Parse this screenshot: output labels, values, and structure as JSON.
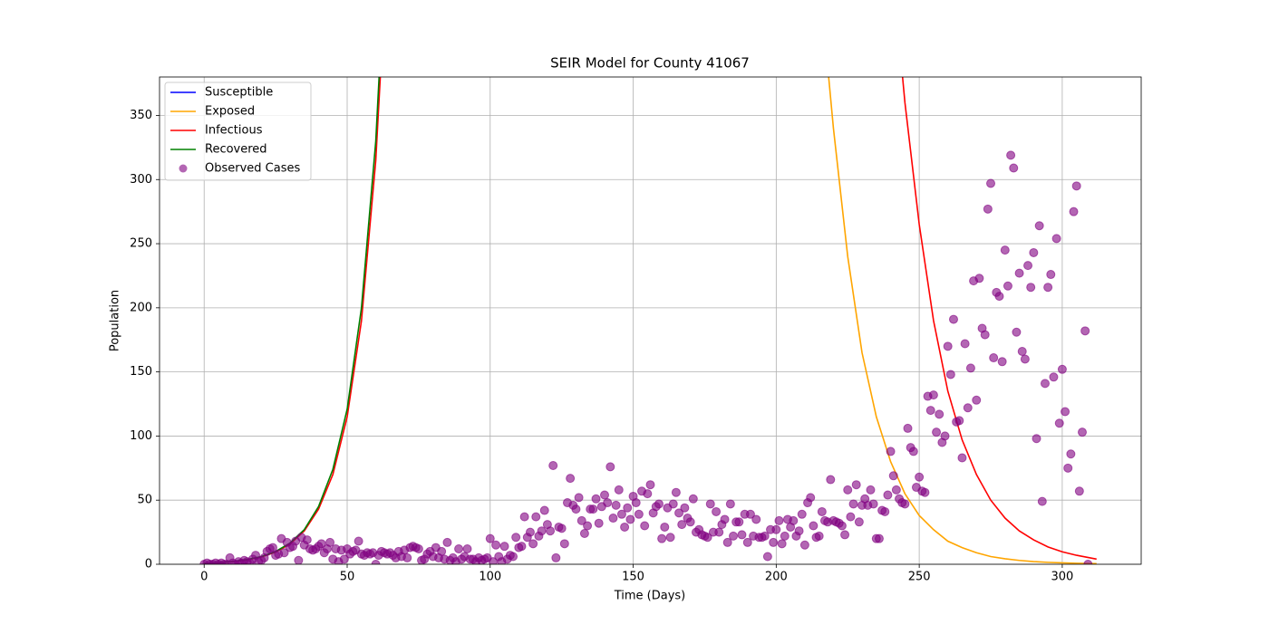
{
  "chart_data": {
    "type": "line",
    "title": "SEIR Model for County 41067",
    "x_label": "Time (Days)",
    "y_label": "Population",
    "xlim": [
      -15.6,
      327.6
    ],
    "ylim": [
      0,
      380
    ],
    "xticks": [
      0,
      50,
      100,
      150,
      200,
      250,
      300
    ],
    "yticks": [
      0,
      50,
      100,
      150,
      200,
      250,
      300,
      350
    ],
    "grid": true,
    "legend": "upper left",
    "x": [
      0,
      5,
      10,
      15,
      20,
      25,
      30,
      35,
      40,
      45,
      50,
      55,
      60,
      65,
      140,
      215,
      220,
      225,
      230,
      235,
      240,
      245,
      250,
      255,
      260,
      265,
      270,
      275,
      280,
      285,
      290,
      295,
      300,
      305,
      312
    ],
    "series": [
      {
        "name": "Susceptible",
        "type": "line",
        "color": "#0000ff",
        "values": [
          null,
          null,
          null,
          null,
          null,
          null,
          null,
          null,
          null,
          null,
          null,
          null,
          null,
          null,
          null,
          null,
          null,
          null,
          null,
          null,
          null,
          null,
          null,
          null,
          null,
          null,
          null,
          null,
          null,
          null,
          null,
          null,
          null,
          null,
          null
        ]
      },
      {
        "name": "Exposed",
        "type": "line",
        "color": "#ffa500",
        "values": [
          null,
          null,
          null,
          null,
          null,
          null,
          null,
          null,
          null,
          null,
          null,
          null,
          null,
          null,
          null,
          460,
          340,
          240,
          165,
          115,
          80,
          55,
          38,
          27,
          18,
          13,
          9,
          6,
          4.3,
          3,
          2.1,
          1.5,
          1.1,
          0.8,
          0.5
        ]
      },
      {
        "name": "Infectious",
        "type": "line",
        "color": "#ff0000",
        "values": [
          0.8,
          1.3,
          2.1,
          3.5,
          5.7,
          9.5,
          15.7,
          26,
          43,
          70,
          115,
          190,
          315,
          520,
          null,
          null,
          null,
          null,
          null,
          null,
          480,
          360,
          265,
          190,
          135,
          97,
          70,
          50,
          36,
          26,
          19,
          13.5,
          9.7,
          7,
          4
        ]
      },
      {
        "name": "Recovered",
        "type": "line",
        "color": "#008000",
        "values": [
          0.8,
          1.4,
          2.2,
          3.7,
          6,
          10,
          16.5,
          27,
          45,
          74,
          121,
          200,
          330,
          545,
          null,
          null,
          null,
          null,
          null,
          null,
          null,
          null,
          null,
          null,
          null,
          null,
          null,
          null,
          null,
          null,
          null,
          null,
          null,
          null,
          null
        ]
      },
      {
        "name": "Observed Cases",
        "type": "scatter",
        "color": "#800080",
        "x": [
          0,
          1,
          2,
          3,
          4,
          5,
          6,
          7,
          8,
          9,
          10,
          11,
          12,
          13,
          14,
          15,
          16,
          17,
          18,
          19,
          20,
          21,
          22,
          23,
          24,
          25,
          26,
          27,
          28,
          29,
          30,
          31,
          32,
          33,
          34,
          35,
          36,
          37,
          38,
          39,
          40,
          41,
          42,
          43,
          44,
          45,
          46,
          47,
          48,
          49,
          50,
          51,
          52,
          53,
          54,
          55,
          56,
          57,
          58,
          59,
          60,
          61,
          62,
          63,
          64,
          65,
          66,
          67,
          68,
          69,
          70,
          71,
          72,
          73,
          74,
          75,
          76,
          77,
          78,
          79,
          80,
          81,
          82,
          83,
          84,
          85,
          86,
          87,
          88,
          89,
          90,
          91,
          92,
          93,
          94,
          95,
          96,
          97,
          98,
          99,
          100,
          101,
          102,
          103,
          104,
          105,
          106,
          107,
          108,
          109,
          110,
          111,
          112,
          113,
          114,
          115,
          116,
          117,
          118,
          119,
          120,
          121,
          122,
          123,
          124,
          125,
          126,
          127,
          128,
          129,
          130,
          131,
          132,
          133,
          134,
          135,
          136,
          137,
          138,
          139,
          140,
          141,
          142,
          143,
          144,
          145,
          146,
          147,
          148,
          149,
          150,
          151,
          152,
          153,
          154,
          155,
          156,
          157,
          158,
          159,
          160,
          161,
          162,
          163,
          164,
          165,
          166,
          167,
          168,
          169,
          170,
          171,
          172,
          173,
          174,
          175,
          176,
          177,
          178,
          179,
          180,
          181,
          182,
          183,
          184,
          185,
          186,
          187,
          188,
          189,
          190,
          191,
          192,
          193,
          194,
          195,
          196,
          197,
          198,
          199,
          200,
          201,
          202,
          203,
          204,
          205,
          206,
          207,
          208,
          209,
          210,
          211,
          212,
          213,
          214,
          215,
          216,
          217,
          218,
          219,
          220,
          221,
          222,
          223,
          224,
          225,
          226,
          227,
          228,
          229,
          230,
          231,
          232,
          233,
          234,
          235,
          236,
          237,
          238,
          239,
          240,
          241,
          242,
          243,
          244,
          245,
          246,
          247,
          248,
          249,
          250,
          251,
          252,
          253,
          254,
          255,
          256,
          257,
          258,
          259,
          260,
          261,
          262,
          263,
          264,
          265,
          266,
          267,
          268,
          269,
          270,
          271,
          272,
          273,
          274,
          275,
          276,
          277,
          278,
          279,
          280,
          281,
          282,
          283,
          284,
          285,
          286,
          287,
          288,
          289,
          290,
          291,
          292,
          293,
          294,
          295,
          296,
          297,
          298,
          299,
          300,
          301,
          302,
          303,
          304,
          305,
          306,
          307,
          308,
          309
        ],
        "values": [
          0,
          1,
          0,
          0,
          1,
          0,
          1,
          0,
          0,
          5,
          1,
          0,
          2,
          1,
          3,
          2,
          1,
          4,
          7,
          2,
          3,
          5,
          10,
          12,
          13,
          7,
          8,
          20,
          9,
          17,
          13,
          14,
          18,
          3,
          21,
          15,
          19,
          12,
          11,
          12,
          14,
          16,
          9,
          12,
          17,
          4,
          12,
          2,
          11,
          4,
          12,
          8,
          10,
          11,
          18,
          8,
          7,
          9,
          8,
          9,
          0,
          7,
          10,
          9,
          8,
          9,
          7,
          5,
          10,
          6,
          11,
          5,
          13,
          14,
          13,
          12,
          3,
          4,
          8,
          10,
          6,
          13,
          5,
          10,
          4,
          17,
          3,
          5,
          2,
          12,
          4,
          6,
          12,
          4,
          4,
          2,
          5,
          3,
          4,
          5,
          20,
          2,
          15,
          6,
          2,
          14,
          4,
          7,
          6,
          21,
          13,
          14,
          37,
          21,
          25,
          16,
          37,
          22,
          26,
          42,
          31,
          26,
          77,
          5,
          29,
          28,
          16,
          48,
          67,
          46,
          43,
          52,
          34,
          24,
          30,
          43,
          43,
          51,
          32,
          45,
          54,
          48,
          76,
          36,
          46,
          58,
          39,
          29,
          44,
          35,
          53,
          48,
          39,
          57,
          30,
          55,
          62,
          40,
          45,
          47,
          20,
          29,
          44,
          21,
          47,
          56,
          40,
          31,
          44,
          36,
          33,
          51,
          25,
          27,
          23,
          22,
          21,
          47,
          25,
          41,
          25,
          31,
          35,
          17,
          47,
          22,
          33,
          33,
          23,
          39,
          17,
          39,
          22,
          35,
          21,
          21,
          22,
          6,
          27,
          17,
          27,
          34,
          16,
          22,
          35,
          29,
          34,
          22,
          26,
          39,
          15,
          48,
          52,
          30,
          21,
          22,
          41,
          34,
          33,
          66,
          34,
          33,
          32,
          30,
          23,
          58,
          37,
          47,
          62,
          33,
          46,
          51,
          46,
          58,
          47,
          20,
          20,
          42,
          41,
          54,
          88,
          69,
          58,
          51,
          48,
          47,
          106,
          91,
          88,
          60,
          68,
          57,
          56,
          131,
          120,
          132,
          103,
          117,
          95,
          100,
          170,
          148,
          191,
          111,
          112,
          83,
          172,
          122,
          153,
          221,
          128,
          223,
          184,
          179,
          277,
          297,
          161,
          212,
          209,
          158,
          245,
          217,
          319,
          309,
          181,
          227,
          166,
          160,
          233,
          216,
          243,
          98,
          264,
          49,
          141,
          216,
          226,
          146,
          254,
          110,
          152,
          119,
          75,
          86,
          275,
          295,
          57,
          103,
          182,
          0
        ]
      }
    ]
  }
}
